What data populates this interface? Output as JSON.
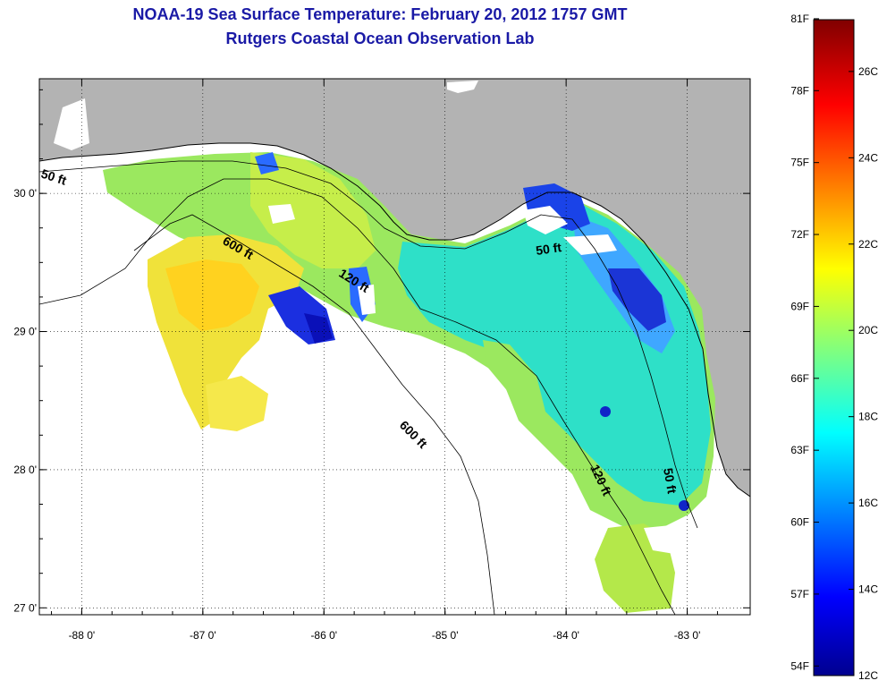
{
  "header": {
    "title": "NOAA-19 Sea Surface Temperature:  February 20, 2012 1757 GMT",
    "subtitle": "Rutgers Coastal Ocean Observation Lab"
  },
  "map": {
    "lon_range": [
      -88.35,
      -82.48
    ],
    "lat_range": [
      26.95,
      30.83
    ],
    "lon_ticks": [
      "-88 0'",
      "-87 0'",
      "-86 0'",
      "-85 0'",
      "-84 0'",
      "-83 0'"
    ],
    "lon_tick_values": [
      -88,
      -87,
      -86,
      -85,
      -84,
      -83
    ],
    "lat_ticks": [
      "30 0'",
      "29 0'",
      "28 0'",
      "27 0'"
    ],
    "lat_tick_values": [
      30,
      29,
      28,
      27
    ],
    "gridlines": "dotted",
    "land_color": "#b3b3b3",
    "no_data_color": "#ffffff",
    "contour_labels": [
      "50 ft",
      "600 ft",
      "120 ft",
      "50 ft",
      "600 ft",
      "120 ft",
      "50 ft"
    ]
  },
  "colorbar": {
    "min_c": 12,
    "max_c": 27.2,
    "fahrenheit_labels": [
      "81F",
      "78F",
      "75F",
      "72F",
      "69F",
      "66F",
      "63F",
      "60F",
      "57F",
      "54F"
    ],
    "celsius_labels": [
      "26C",
      "24C",
      "22C",
      "20C",
      "18C",
      "16C",
      "14C",
      "12C"
    ],
    "colors": [
      "#00008f",
      "#0000ff",
      "#00ffff",
      "#ffff00",
      "#ff0000",
      "#800000"
    ]
  }
}
